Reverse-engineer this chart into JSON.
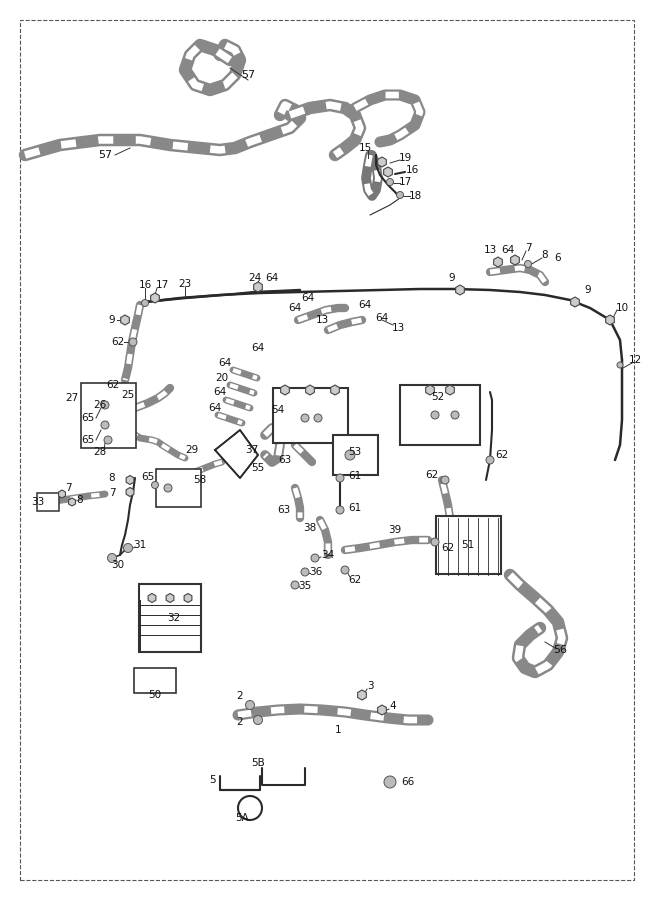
{
  "bg_color": "#f5f5f5",
  "line_color": "#2a2a2a",
  "label_color": "#111111",
  "label_fontsize": 7.5,
  "hose_color": "#666666",
  "component_color": "#333333",
  "figw": 6.54,
  "figh": 9.0,
  "dpi": 100
}
